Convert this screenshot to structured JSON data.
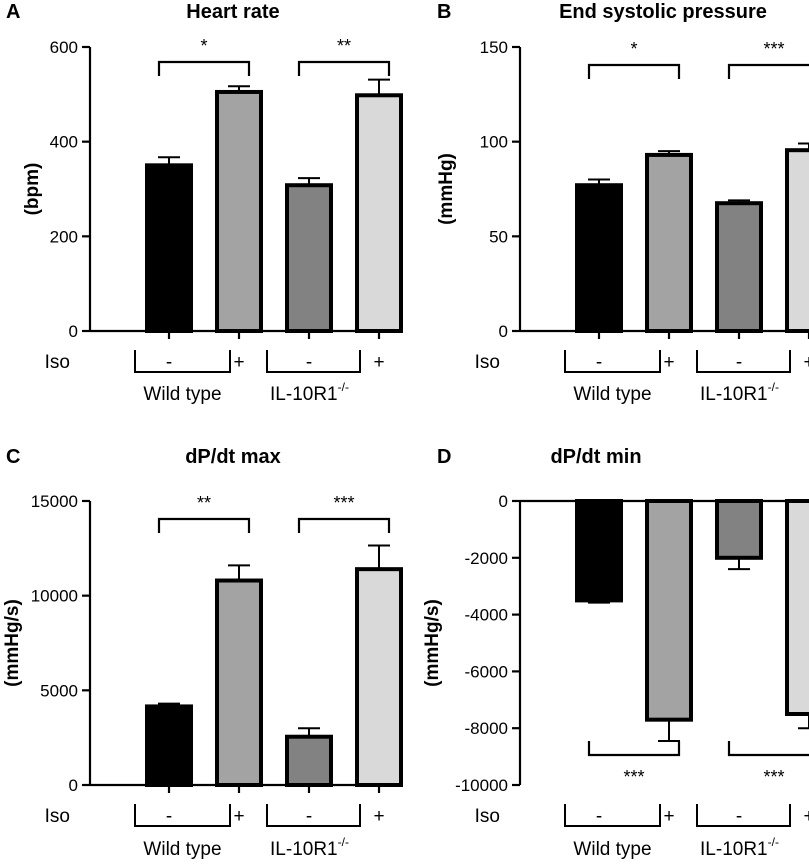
{
  "chart_data": [
    {
      "panel": "A",
      "type": "bar",
      "title": "Heart rate",
      "xlabel": "",
      "ylabel": "(bpm)",
      "ylim": [
        0,
        600
      ],
      "yticks": [
        0,
        200,
        400,
        600
      ],
      "ytick_labels": [
        "0",
        "200",
        "400",
        "600"
      ],
      "categories": [
        "Wild type -",
        "Wild type +",
        "IL-10R1-/- -",
        "IL-10R1-/- +"
      ],
      "values": [
        350,
        505,
        308,
        498
      ],
      "errors": [
        17,
        12,
        15,
        33
      ],
      "bar_colors": [
        "#000000",
        "#a3a3a3",
        "#828282",
        "#d9d9d9"
      ],
      "significance": [
        {
          "pair": [
            0,
            1
          ],
          "label": "*"
        },
        {
          "pair": [
            2,
            3
          ],
          "label": "**"
        }
      ]
    },
    {
      "panel": "B",
      "type": "bar",
      "title": "End systolic pressure",
      "xlabel": "",
      "ylabel": "(mmHg)",
      "ylim": [
        0,
        150
      ],
      "yticks": [
        0,
        50,
        100,
        150
      ],
      "ytick_labels": [
        "0",
        "50",
        "100",
        "150"
      ],
      "categories": [
        "Wild type -",
        "Wild type +",
        "IL-10R1-/- -",
        "IL-10R1-/- +"
      ],
      "values": [
        77,
        93,
        67.5,
        95.5
      ],
      "errors": [
        3,
        2,
        1.5,
        3.5
      ],
      "bar_colors": [
        "#000000",
        "#a3a3a3",
        "#828282",
        "#d9d9d9"
      ],
      "significance": [
        {
          "pair": [
            0,
            1
          ],
          "label": "*"
        },
        {
          "pair": [
            2,
            3
          ],
          "label": "***"
        }
      ]
    },
    {
      "panel": "C",
      "type": "bar",
      "title": "dP/dt max",
      "xlabel": "",
      "ylabel": "(mmHg/s)",
      "ylim": [
        0,
        15000
      ],
      "yticks": [
        0,
        5000,
        10000,
        15000
      ],
      "ytick_labels": [
        "0",
        "5000",
        "10000",
        "15000"
      ],
      "categories": [
        "Wild type -",
        "Wild type +",
        "IL-10R1-/- -",
        "IL-10R1-/- +"
      ],
      "values": [
        4150,
        10800,
        2550,
        11400
      ],
      "errors": [
        150,
        800,
        450,
        1250
      ],
      "bar_colors": [
        "#000000",
        "#a3a3a3",
        "#828282",
        "#d9d9d9"
      ],
      "significance": [
        {
          "pair": [
            0,
            1
          ],
          "label": "**"
        },
        {
          "pair": [
            2,
            3
          ],
          "label": "***"
        }
      ]
    },
    {
      "panel": "D",
      "type": "bar",
      "title": "dP/dt min",
      "xlabel": "",
      "ylabel": "(mmHg/s)",
      "ylim": [
        -10000,
        0
      ],
      "yticks": [
        0,
        -2000,
        -4000,
        -6000,
        -8000,
        -10000
      ],
      "ytick_labels": [
        "0",
        "-2000",
        "-4000",
        "-6000",
        "-8000",
        "-10000"
      ],
      "categories": [
        "Wild type -",
        "Wild type +",
        "IL-10R1-/- -",
        "IL-10R1-/- +"
      ],
      "values": [
        -3500,
        -7700,
        -2000,
        -7500
      ],
      "errors": [
        80,
        750,
        400,
        500
      ],
      "bar_colors": [
        "#000000",
        "#a3a3a3",
        "#828282",
        "#d9d9d9"
      ],
      "significance": [
        {
          "pair": [
            0,
            1
          ],
          "label": "***"
        },
        {
          "pair": [
            2,
            3
          ],
          "label": "***"
        }
      ]
    }
  ],
  "labels": {
    "iso": "Iso",
    "minus": "-",
    "plus": "+",
    "group_wild_type": "Wild type",
    "group_ko_base": "IL-10R1",
    "group_ko_sup": "-/-"
  }
}
